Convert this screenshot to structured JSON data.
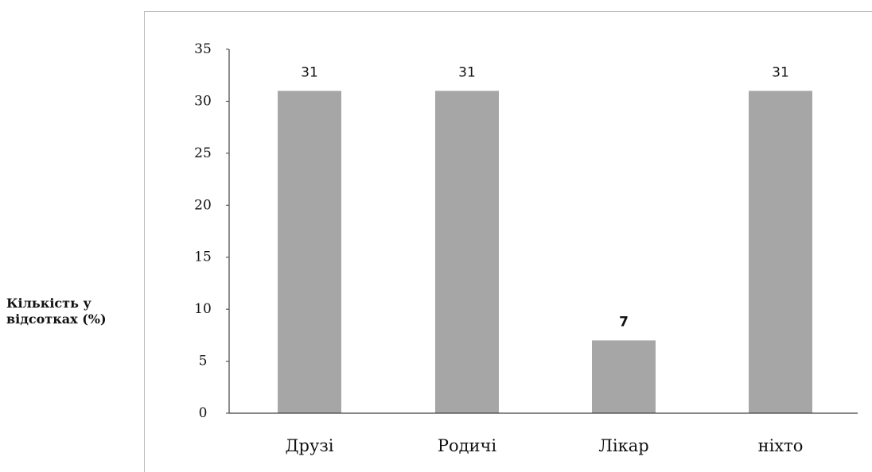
{
  "chart_data": {
    "type": "bar",
    "categories": [
      "Друзі",
      "Родичі",
      "Лікар",
      "ніхто"
    ],
    "values": [
      31,
      31,
      7,
      31
    ],
    "data_labels": [
      "31",
      "31",
      "7",
      "31"
    ],
    "ylabel_lines": [
      "Кількість у",
      "відсотках (%)"
    ],
    "xlabel": "",
    "title": "",
    "ylim": [
      0,
      35
    ],
    "yticks": [
      0,
      5,
      10,
      15,
      20,
      25,
      30,
      35
    ],
    "grid": false,
    "legend": "none",
    "bar_color": "#a6a6a6",
    "axis_color": "#404040"
  }
}
